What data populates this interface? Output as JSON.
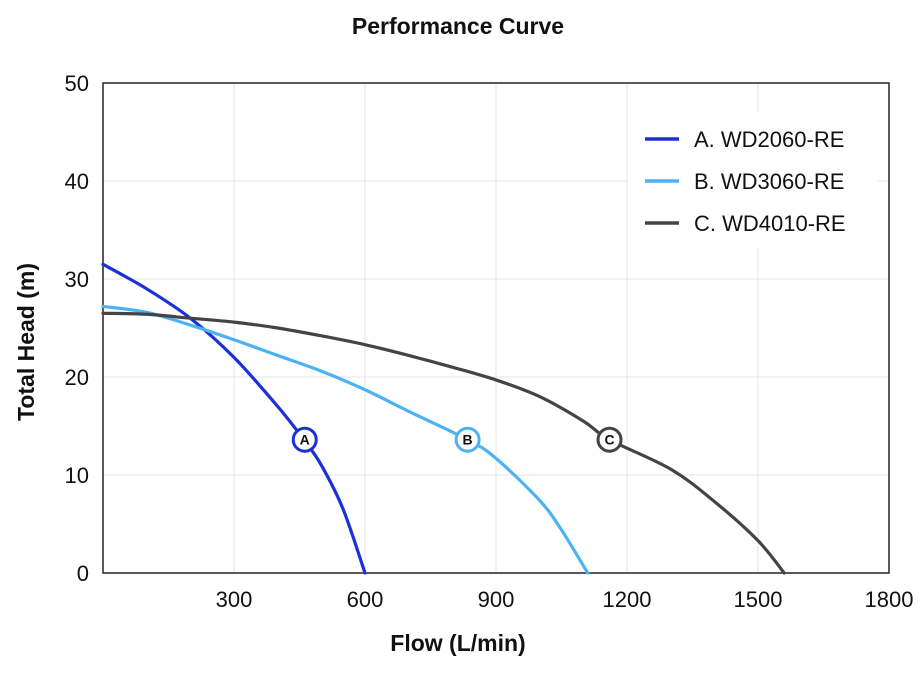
{
  "chart_data": {
    "type": "line",
    "title": "Performance Curve",
    "xlabel": "Flow (L/min)",
    "ylabel": "Total Head (m)",
    "xlim": [
      0,
      1800
    ],
    "ylim": [
      0,
      50
    ],
    "x_ticks": [
      300,
      600,
      900,
      1200,
      1500,
      1800
    ],
    "y_ticks": [
      0,
      10,
      20,
      30,
      40,
      50
    ],
    "grid": true,
    "legend_position": "top-right",
    "series": [
      {
        "name": "A.  WD2060-RE",
        "marker_label": "A",
        "color": "#1a30d8",
        "x": [
          0,
          100,
          200,
          300,
          400,
          460,
          500,
          550,
          600
        ],
        "y": [
          31.5,
          29.0,
          26.0,
          22.0,
          17.0,
          13.6,
          11.0,
          6.5,
          0
        ],
        "marker": {
          "x": 462,
          "y": 13.6
        }
      },
      {
        "name": "B.  WD3060-RE",
        "marker_label": "B",
        "color": "#4db2f5",
        "x": [
          0,
          100,
          200,
          300,
          400,
          500,
          600,
          700,
          835,
          900,
          1000,
          1050,
          1110
        ],
        "y": [
          27.2,
          26.6,
          25.3,
          23.8,
          22.2,
          20.6,
          18.7,
          16.5,
          13.6,
          11.7,
          7.4,
          4.4,
          0
        ],
        "marker": {
          "x": 835,
          "y": 13.6
        }
      },
      {
        "name": "C.  WD4010-RE",
        "marker_label": "C",
        "color": "#444444",
        "x": [
          0,
          100,
          200,
          300,
          400,
          500,
          600,
          700,
          800,
          900,
          1000,
          1100,
          1160,
          1300,
          1400,
          1500,
          1560
        ],
        "y": [
          26.5,
          26.4,
          26.0,
          25.6,
          25.0,
          24.2,
          23.3,
          22.2,
          21.0,
          19.7,
          18.0,
          15.5,
          13.6,
          10.6,
          7.3,
          3.3,
          0
        ],
        "marker": {
          "x": 1160,
          "y": 13.6
        }
      }
    ]
  }
}
